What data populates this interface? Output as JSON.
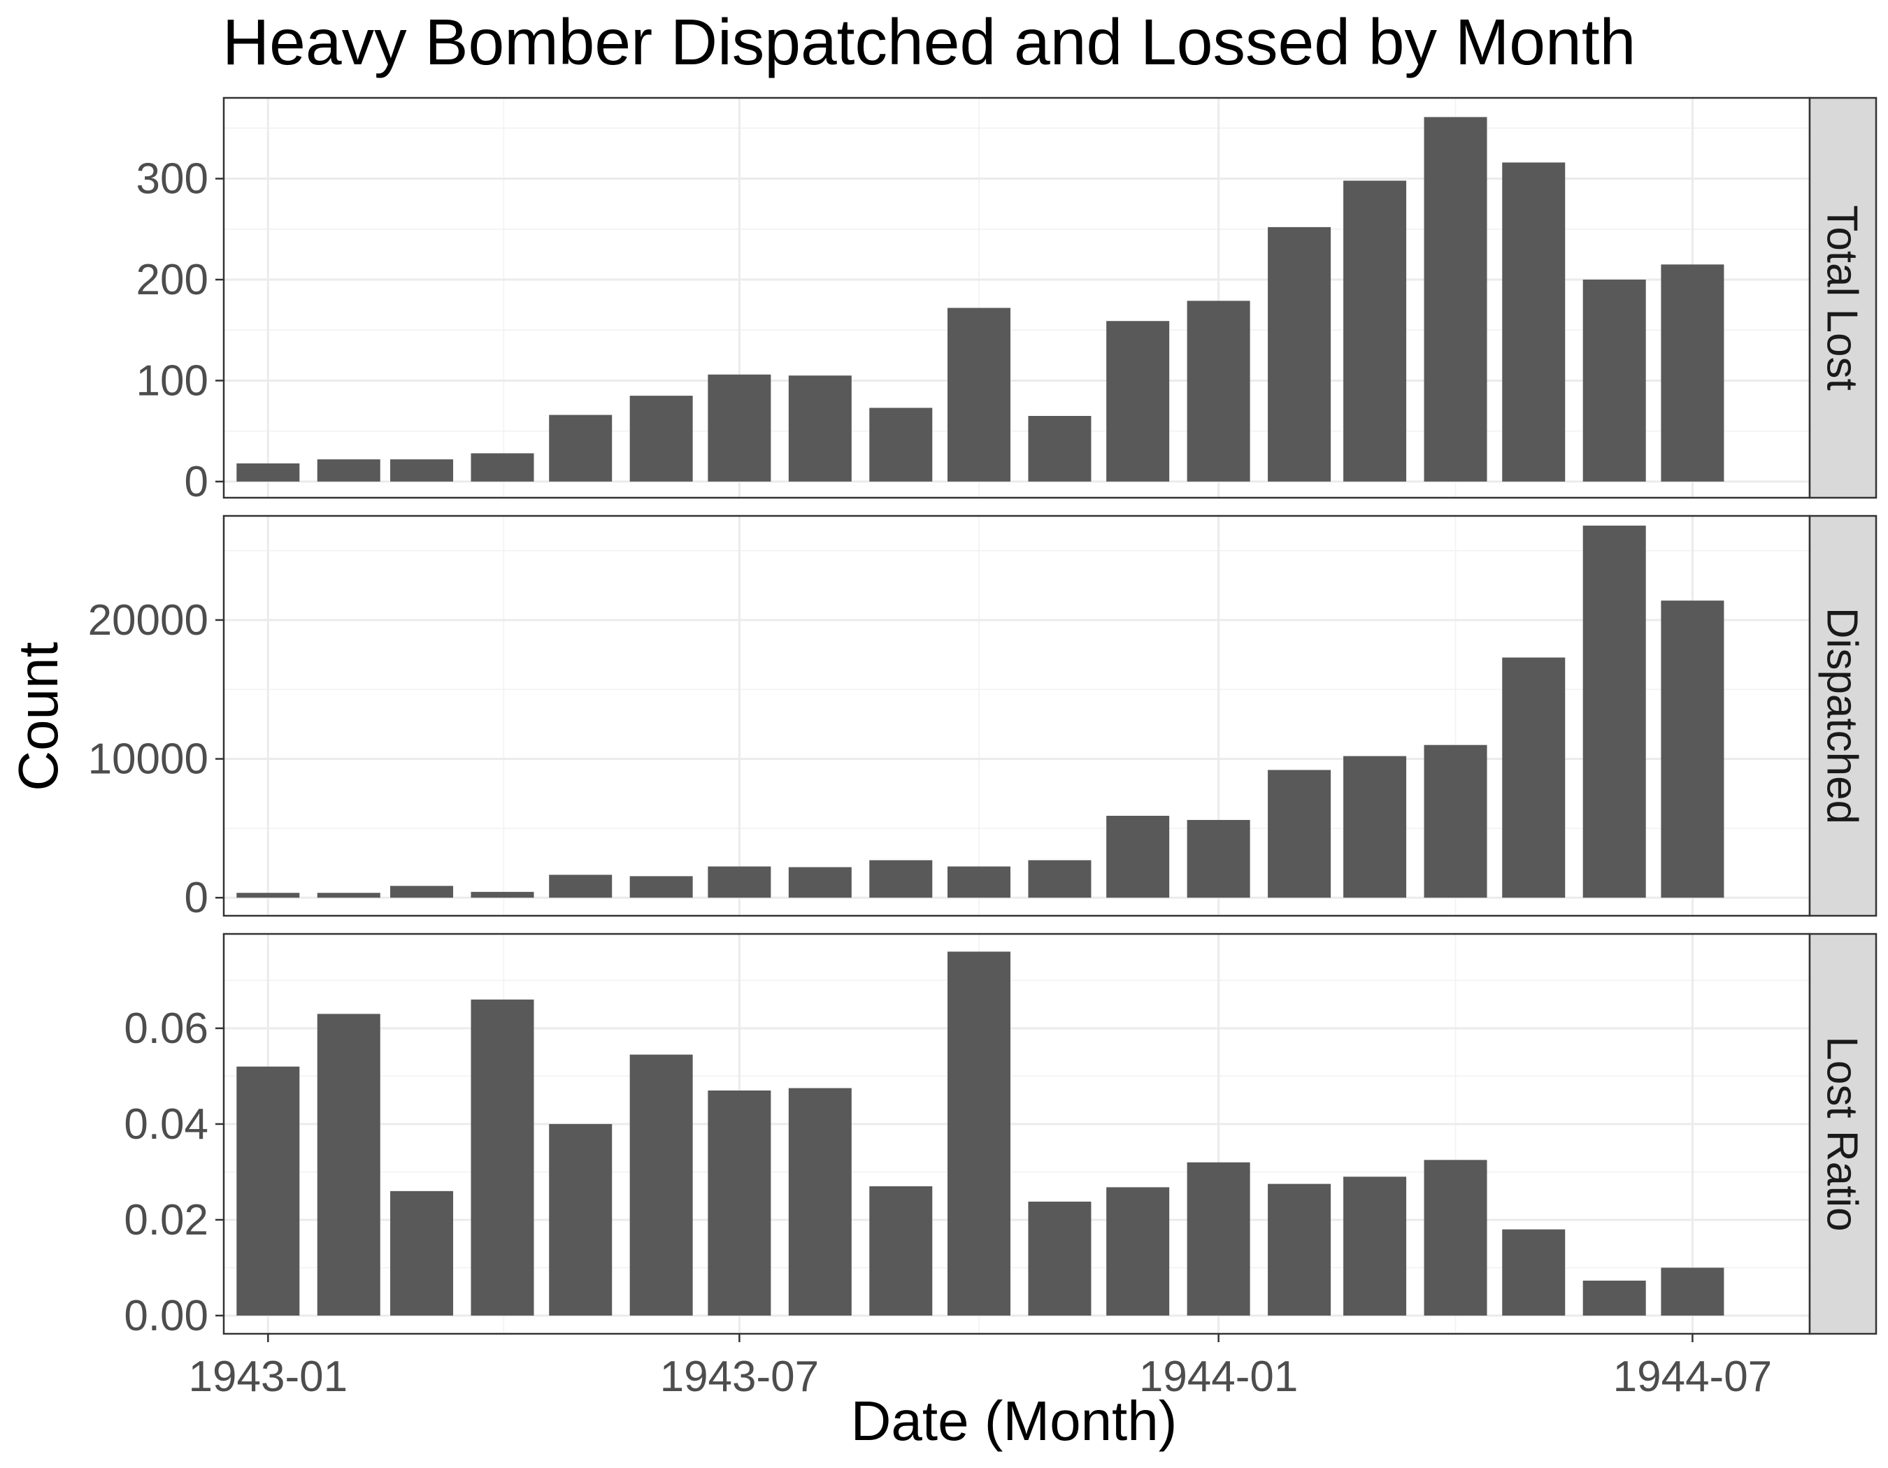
{
  "chart_data": {
    "type": "bar",
    "title": "Heavy Bomber Dispatched and Lossed by Month",
    "xlabel": "Date (Month)",
    "ylabel": "Count",
    "x_tick_labels": [
      "1943-01",
      "1943-07",
      "1944-01",
      "1944-07"
    ],
    "x_ticks": [
      "1943-01-01",
      "1943-07-01",
      "1944-01-01",
      "1944-07-01"
    ],
    "x": [
      "1943-01-01",
      "1943-02-01",
      "1943-03-01",
      "1943-04-01",
      "1943-05-01",
      "1943-06-01",
      "1943-07-01",
      "1943-08-01",
      "1943-09-01",
      "1943-10-01",
      "1943-11-01",
      "1943-12-01",
      "1944-01-01",
      "1944-02-01",
      "1944-03-01",
      "1944-04-01",
      "1944-05-01",
      "1944-06-01",
      "1944-07-01"
    ],
    "xlim": [
      "1942-12-15",
      "1944-08-15"
    ],
    "grid": true,
    "facets": [
      {
        "label": "Total Lost",
        "ylim": [
          -16,
          380
        ],
        "y_ticks": [
          0,
          100,
          200,
          300
        ],
        "y_tick_labels": [
          "0",
          "100",
          "200",
          "300"
        ],
        "values": [
          18,
          22,
          22,
          28,
          66,
          85,
          106,
          105,
          73,
          172,
          65,
          159,
          179,
          252,
          298,
          361,
          316,
          200,
          215
        ]
      },
      {
        "label": "Dispatched",
        "ylim": [
          -1300,
          27500
        ],
        "y_ticks": [
          0,
          10000,
          20000
        ],
        "y_tick_labels": [
          "0",
          "10000",
          "20000"
        ],
        "values": [
          350,
          350,
          850,
          420,
          1650,
          1550,
          2250,
          2200,
          2700,
          2250,
          2700,
          5900,
          5600,
          9200,
          10200,
          11000,
          17300,
          26800,
          21400
        ]
      },
      {
        "label": "Lost Ratio",
        "ylim": [
          -0.0038,
          0.0797
        ],
        "y_ticks": [
          0,
          0.02,
          0.04,
          0.06
        ],
        "y_tick_labels": [
          "0.00",
          "0.02",
          "0.04",
          "0.06"
        ],
        "values": [
          0.052,
          0.063,
          0.026,
          0.066,
          0.04,
          0.0545,
          0.047,
          0.0475,
          0.027,
          0.076,
          0.0238,
          0.0268,
          0.032,
          0.0275,
          0.029,
          0.0325,
          0.018,
          0.0073,
          0.01
        ]
      }
    ]
  }
}
